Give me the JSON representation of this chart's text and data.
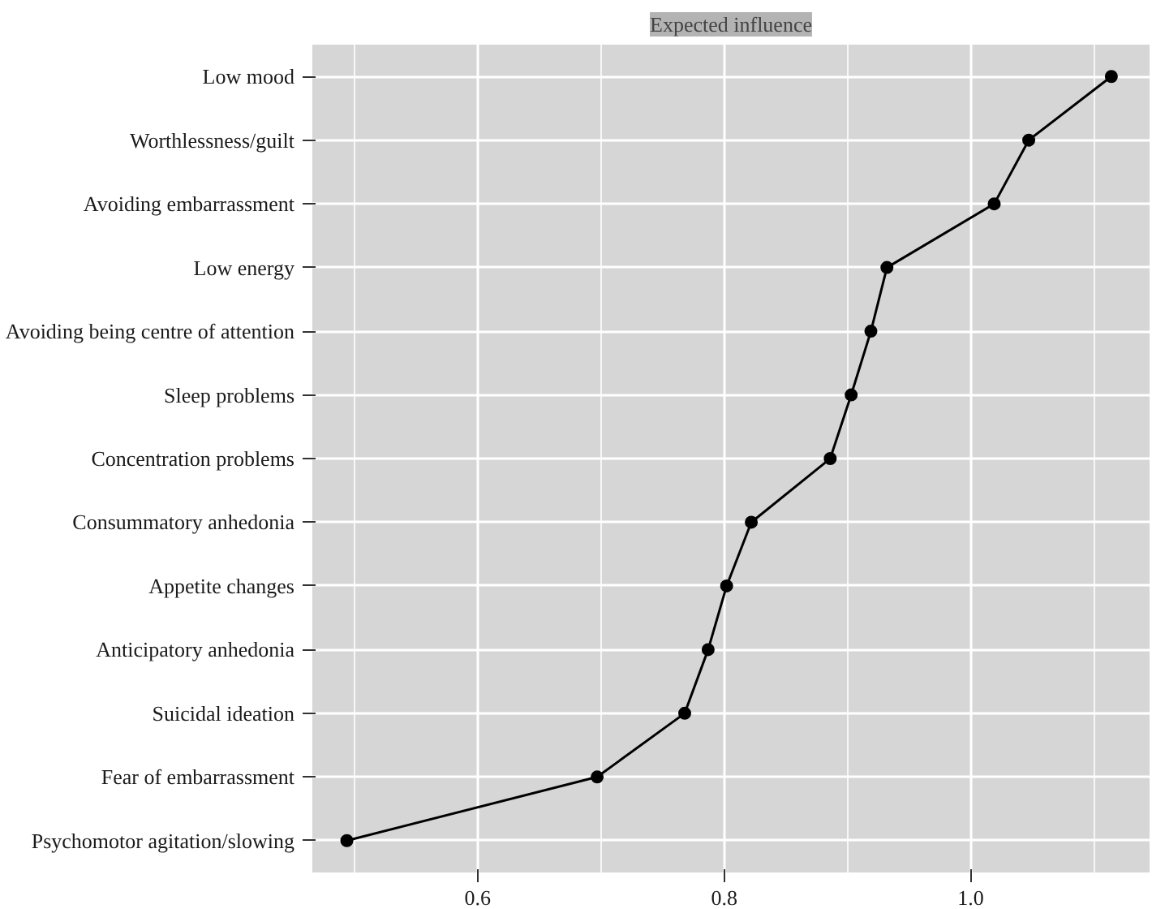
{
  "chart_data": {
    "type": "line",
    "orientation": "horizontal",
    "title": "Expected influence",
    "categories": [
      "Low mood",
      "Worthlessness/guilt",
      "Avoiding embarrassment",
      "Low energy",
      "Avoiding being centre of attention",
      "Sleep problems",
      "Concentration problems",
      "Consummatory anhedonia",
      "Appetite changes",
      "Anticipatory anhedonia",
      "Suicidal ideation",
      "Fear of embarrassment",
      "Psychomotor agitation/slowing"
    ],
    "values": [
      1.114,
      1.047,
      1.019,
      0.932,
      0.919,
      0.903,
      0.886,
      0.822,
      0.802,
      0.787,
      0.768,
      0.697,
      0.494
    ],
    "color": "#000000",
    "marker": "circle",
    "line_style": "solid",
    "xlim": [
      0.466,
      1.145
    ],
    "xticks": [
      {
        "value": 0.6,
        "label": "0.6"
      },
      {
        "value": 0.8,
        "label": "0.8"
      },
      {
        "value": 1.0,
        "label": "1.0"
      }
    ],
    "grid": true
  }
}
